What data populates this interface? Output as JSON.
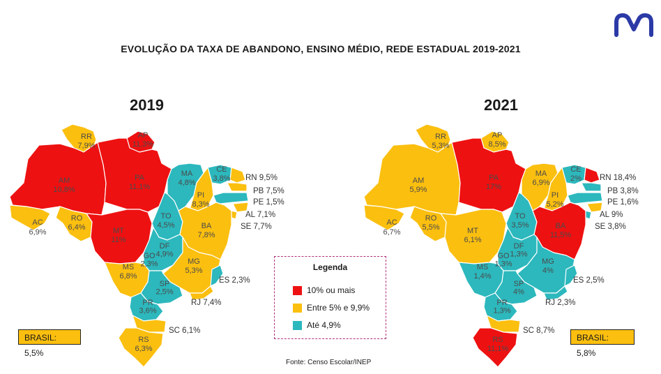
{
  "title": "EVOLUÇÃO DA TAXA DE ABANDONO, ENSINO MÉDIO, REDE ESTADUAL 2019-2021",
  "colors": {
    "red": "#ee1111",
    "yellow": "#fbbf0f",
    "teal": "#2cb8bd"
  },
  "legend": {
    "title": "Legenda",
    "items": [
      {
        "label": "10% ou mais",
        "color": "#ee1111"
      },
      {
        "label": "Entre 5% e 9,9%",
        "color": "#fbbf0f"
      },
      {
        "label": "Até 4,9%",
        "color": "#2cb8bd"
      }
    ]
  },
  "source": "Fonte: Censo Escolar/INEP",
  "maps": [
    {
      "year": "2019",
      "brasil": "BRASIL: 5,5%",
      "states": {
        "RR": {
          "name": "RR",
          "value": "7,9%",
          "color": "yellow"
        },
        "AP": {
          "name": "AP",
          "value": "11,3%",
          "color": "red"
        },
        "AM": {
          "name": "AM",
          "value": "10,8%",
          "color": "red"
        },
        "PA": {
          "name": "PA",
          "value": "11,1%",
          "color": "red"
        },
        "AC": {
          "name": "AC",
          "value": "6,9%",
          "color": "yellow"
        },
        "RO": {
          "name": "RO",
          "value": "6,4%",
          "color": "yellow"
        },
        "MT": {
          "name": "MT",
          "value": "11%",
          "color": "red"
        },
        "MA": {
          "name": "MA",
          "value": "4,8%",
          "color": "teal"
        },
        "CE": {
          "name": "CE",
          "value": "3,8%",
          "color": "teal"
        },
        "PI": {
          "name": "PI",
          "value": "8,3%",
          "color": "yellow"
        },
        "TO": {
          "name": "TO",
          "value": "4,5%",
          "color": "teal"
        },
        "BA": {
          "name": "BA",
          "value": "7,8%",
          "color": "yellow"
        },
        "DF": {
          "name": "DF",
          "value": "4,9%",
          "color": "teal"
        },
        "GO": {
          "name": "GO",
          "value": "2,3%",
          "color": "teal"
        },
        "MG": {
          "name": "MG",
          "value": "5,3%",
          "color": "yellow"
        },
        "MS": {
          "name": "MS",
          "value": "6,8%",
          "color": "yellow"
        },
        "SP": {
          "name": "SP",
          "value": "2,5%",
          "color": "teal"
        },
        "PR": {
          "name": "PR",
          "value": "3,6%",
          "color": "teal"
        },
        "SC": {
          "name": "SC",
          "value": "6,1%",
          "color": "yellow"
        },
        "RS": {
          "name": "RS",
          "value": "6,3%",
          "color": "yellow"
        },
        "RN": {
          "name": "RN",
          "value": "9,5%",
          "color": "yellow"
        },
        "PB": {
          "name": "PB",
          "value": "7,5%",
          "color": "yellow"
        },
        "PE": {
          "name": "PE",
          "value": "1,5%",
          "color": "teal"
        },
        "AL": {
          "name": "AL",
          "value": "7,1%",
          "color": "yellow"
        },
        "SE": {
          "name": "SE",
          "value": "7,7%",
          "color": "yellow"
        },
        "ES": {
          "name": "ES",
          "value": "2,3%",
          "color": "teal"
        },
        "RJ": {
          "name": "RJ",
          "value": "7,4%",
          "color": "yellow"
        }
      }
    },
    {
      "year": "2021",
      "brasil": "BRASIL: 5,8%",
      "states": {
        "RR": {
          "name": "RR",
          "value": "5,3%",
          "color": "yellow"
        },
        "AP": {
          "name": "AP",
          "value": "8,5%",
          "color": "yellow"
        },
        "AM": {
          "name": "AM",
          "value": "5,9%",
          "color": "yellow"
        },
        "PA": {
          "name": "PA",
          "value": "17%",
          "color": "red"
        },
        "AC": {
          "name": "AC",
          "value": "6,7%",
          "color": "yellow"
        },
        "RO": {
          "name": "RO",
          "value": "5,5%",
          "color": "yellow"
        },
        "MT": {
          "name": "MT",
          "value": "6,1%",
          "color": "yellow"
        },
        "MA": {
          "name": "MA",
          "value": "6,9%",
          "color": "yellow"
        },
        "CE": {
          "name": "CE",
          "value": "2%",
          "color": "teal"
        },
        "PI": {
          "name": "PI",
          "value": "5,2%",
          "color": "yellow"
        },
        "TO": {
          "name": "TO",
          "value": "3,5%",
          "color": "teal"
        },
        "BA": {
          "name": "BA",
          "value": "11,5%",
          "color": "red"
        },
        "DF": {
          "name": "DF",
          "value": "1,3%",
          "color": "teal"
        },
        "GO": {
          "name": "GO",
          "value": "1,3%",
          "color": "teal"
        },
        "MG": {
          "name": "MG",
          "value": "4%",
          "color": "teal"
        },
        "MS": {
          "name": "MS",
          "value": "1,4%",
          "color": "teal"
        },
        "SP": {
          "name": "SP",
          "value": "4%",
          "color": "teal"
        },
        "PR": {
          "name": "PR",
          "value": "1,3%",
          "color": "teal"
        },
        "SC": {
          "name": "SC",
          "value": "8,7%",
          "color": "yellow"
        },
        "RS": {
          "name": "RS",
          "value": "11,1%",
          "color": "red"
        },
        "RN": {
          "name": "RN",
          "value": "18,4%",
          "color": "red"
        },
        "PB": {
          "name": "PB",
          "value": "3,8%",
          "color": "teal"
        },
        "PE": {
          "name": "PE",
          "value": "1,6%",
          "color": "teal"
        },
        "AL": {
          "name": "AL",
          "value": "9%",
          "color": "yellow"
        },
        "SE": {
          "name": "SE",
          "value": "3,8%",
          "color": "teal"
        },
        "ES": {
          "name": "ES",
          "value": "2,5%",
          "color": "teal"
        },
        "RJ": {
          "name": "RJ",
          "value": "2,3%",
          "color": "teal"
        }
      }
    }
  ]
}
